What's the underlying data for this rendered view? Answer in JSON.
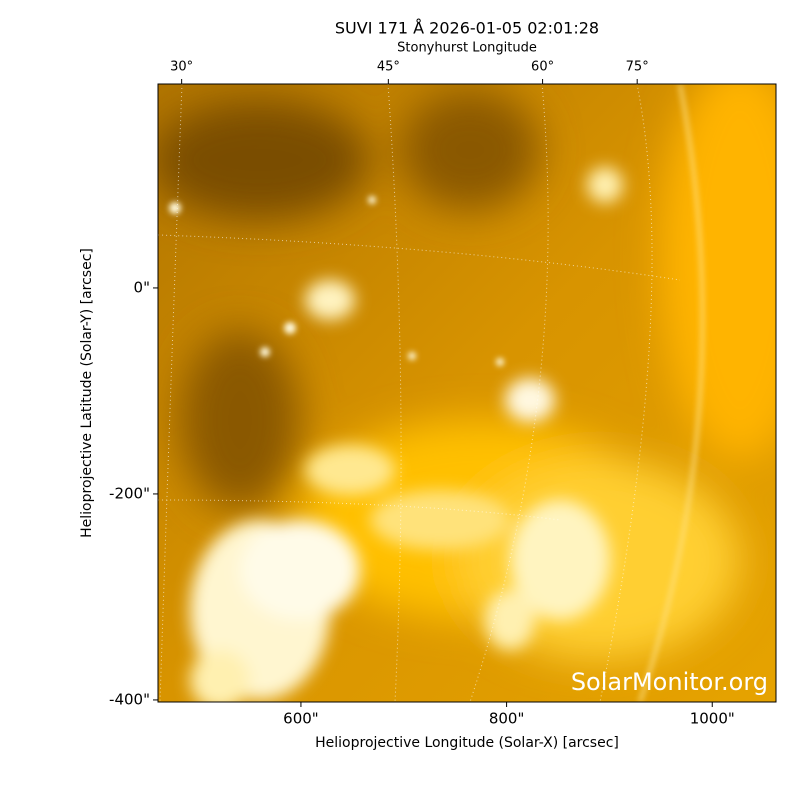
{
  "chart_data": {
    "type": "image",
    "title": "SUVI 171 Å 2026-01-05 02:01:28",
    "xlabel": "Helioprojective Longitude (Solar-X) [arcsec]",
    "ylabel": "Helioprojective Latitude (Solar-Y) [arcsec]",
    "xlim": [
      461,
      1062
    ],
    "ylim": [
      -402,
      198
    ],
    "xticks": [
      {
        "value": 600,
        "label": "600\""
      },
      {
        "value": 800,
        "label": "800\""
      },
      {
        "value": 1000,
        "label": "1000\""
      }
    ],
    "yticks": [
      {
        "value": -400,
        "label": "-400\""
      },
      {
        "value": -200,
        "label": "-200\""
      },
      {
        "value": 0,
        "label": "0\""
      }
    ],
    "top_axis": {
      "label": "Stonyhurst Longitude",
      "ticks": [
        {
          "value": 30,
          "label": "30°",
          "at_x": 484
        },
        {
          "value": 45,
          "label": "45°",
          "at_x": 685
        },
        {
          "value": 60,
          "label": "60°",
          "at_x": 835
        },
        {
          "value": 75,
          "label": "75°",
          "at_x": 927
        }
      ]
    },
    "watermark": "SolarMonitor.org"
  }
}
